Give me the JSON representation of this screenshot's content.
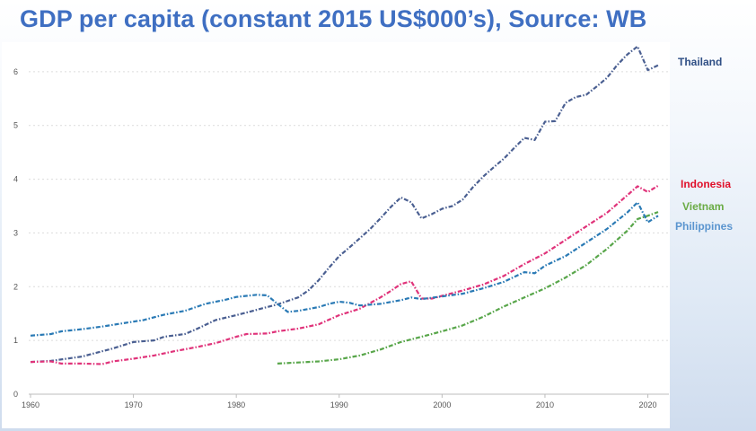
{
  "header": {
    "title": "GDP per capita (constant 2015 US$000’s), Source: WB"
  },
  "chart_data": {
    "type": "line",
    "title": "GDP per capita (constant 2015 US$000’s), Source: WB",
    "xlabel": "",
    "ylabel": "",
    "xlim": [
      1960,
      2021
    ],
    "ylim": [
      0,
      6.5
    ],
    "x_ticks": [
      1960,
      1970,
      1980,
      1990,
      2000,
      2010,
      2020
    ],
    "y_ticks": [
      0,
      1,
      2,
      3,
      4,
      5,
      6
    ],
    "grid": "horizontal dotted",
    "legend": "right, direct labels",
    "series": [
      {
        "name": "Thailand",
        "color": "#4a5f91",
        "points": [
          [
            1960,
            0.6
          ],
          [
            1962,
            0.62
          ],
          [
            1965,
            0.7
          ],
          [
            1968,
            0.85
          ],
          [
            1970,
            0.97
          ],
          [
            1972,
            1.0
          ],
          [
            1973,
            1.07
          ],
          [
            1975,
            1.12
          ],
          [
            1976,
            1.2
          ],
          [
            1978,
            1.38
          ],
          [
            1980,
            1.47
          ],
          [
            1982,
            1.57
          ],
          [
            1984,
            1.67
          ],
          [
            1986,
            1.8
          ],
          [
            1987,
            1.93
          ],
          [
            1988,
            2.12
          ],
          [
            1989,
            2.35
          ],
          [
            1990,
            2.57
          ],
          [
            1991,
            2.73
          ],
          [
            1992,
            2.9
          ],
          [
            1993,
            3.07
          ],
          [
            1994,
            3.27
          ],
          [
            1995,
            3.48
          ],
          [
            1996,
            3.66
          ],
          [
            1997,
            3.57
          ],
          [
            1998,
            3.27
          ],
          [
            1999,
            3.35
          ],
          [
            2000,
            3.45
          ],
          [
            2001,
            3.5
          ],
          [
            2002,
            3.62
          ],
          [
            2003,
            3.85
          ],
          [
            2004,
            4.05
          ],
          [
            2005,
            4.22
          ],
          [
            2006,
            4.38
          ],
          [
            2007,
            4.58
          ],
          [
            2008,
            4.77
          ],
          [
            2009,
            4.73
          ],
          [
            2010,
            5.07
          ],
          [
            2011,
            5.08
          ],
          [
            2012,
            5.42
          ],
          [
            2013,
            5.53
          ],
          [
            2014,
            5.57
          ],
          [
            2015,
            5.72
          ],
          [
            2016,
            5.88
          ],
          [
            2017,
            6.12
          ],
          [
            2018,
            6.32
          ],
          [
            2019,
            6.47
          ],
          [
            2020,
            6.03
          ],
          [
            2021,
            6.12
          ]
        ]
      },
      {
        "name": "Indonesia",
        "color": "#e0337a",
        "points": [
          [
            1960,
            0.6
          ],
          [
            1962,
            0.61
          ],
          [
            1963,
            0.57
          ],
          [
            1965,
            0.57
          ],
          [
            1967,
            0.56
          ],
          [
            1968,
            0.61
          ],
          [
            1970,
            0.66
          ],
          [
            1972,
            0.72
          ],
          [
            1974,
            0.8
          ],
          [
            1976,
            0.87
          ],
          [
            1978,
            0.95
          ],
          [
            1980,
            1.07
          ],
          [
            1981,
            1.12
          ],
          [
            1983,
            1.13
          ],
          [
            1984,
            1.17
          ],
          [
            1986,
            1.22
          ],
          [
            1988,
            1.3
          ],
          [
            1990,
            1.47
          ],
          [
            1992,
            1.59
          ],
          [
            1994,
            1.8
          ],
          [
            1995,
            1.92
          ],
          [
            1996,
            2.05
          ],
          [
            1997,
            2.1
          ],
          [
            1998,
            1.78
          ],
          [
            1999,
            1.78
          ],
          [
            2000,
            1.83
          ],
          [
            2002,
            1.93
          ],
          [
            2004,
            2.04
          ],
          [
            2006,
            2.2
          ],
          [
            2008,
            2.42
          ],
          [
            2010,
            2.62
          ],
          [
            2012,
            2.87
          ],
          [
            2014,
            3.12
          ],
          [
            2016,
            3.37
          ],
          [
            2018,
            3.7
          ],
          [
            2019,
            3.87
          ],
          [
            2020,
            3.76
          ],
          [
            2021,
            3.88
          ]
        ]
      },
      {
        "name": "Vietnam",
        "color": "#58a64a",
        "points": [
          [
            1984,
            0.57
          ],
          [
            1986,
            0.59
          ],
          [
            1988,
            0.61
          ],
          [
            1990,
            0.65
          ],
          [
            1992,
            0.72
          ],
          [
            1994,
            0.83
          ],
          [
            1996,
            0.97
          ],
          [
            1998,
            1.07
          ],
          [
            2000,
            1.17
          ],
          [
            2002,
            1.28
          ],
          [
            2004,
            1.44
          ],
          [
            2006,
            1.63
          ],
          [
            2008,
            1.8
          ],
          [
            2010,
            1.97
          ],
          [
            2012,
            2.17
          ],
          [
            2014,
            2.4
          ],
          [
            2016,
            2.7
          ],
          [
            2018,
            3.04
          ],
          [
            2019,
            3.26
          ],
          [
            2020,
            3.32
          ],
          [
            2021,
            3.39
          ]
        ]
      },
      {
        "name": "Philippines",
        "color": "#2a7ab5",
        "points": [
          [
            1960,
            1.09
          ],
          [
            1962,
            1.12
          ],
          [
            1963,
            1.17
          ],
          [
            1965,
            1.21
          ],
          [
            1967,
            1.26
          ],
          [
            1969,
            1.32
          ],
          [
            1971,
            1.38
          ],
          [
            1973,
            1.48
          ],
          [
            1975,
            1.55
          ],
          [
            1977,
            1.68
          ],
          [
            1979,
            1.76
          ],
          [
            1980,
            1.81
          ],
          [
            1982,
            1.85
          ],
          [
            1983,
            1.84
          ],
          [
            1984,
            1.68
          ],
          [
            1985,
            1.53
          ],
          [
            1986,
            1.55
          ],
          [
            1988,
            1.62
          ],
          [
            1989,
            1.68
          ],
          [
            1990,
            1.72
          ],
          [
            1991,
            1.7
          ],
          [
            1992,
            1.65
          ],
          [
            1994,
            1.68
          ],
          [
            1996,
            1.75
          ],
          [
            1997,
            1.8
          ],
          [
            1998,
            1.77
          ],
          [
            2000,
            1.82
          ],
          [
            2002,
            1.87
          ],
          [
            2004,
            1.97
          ],
          [
            2006,
            2.09
          ],
          [
            2008,
            2.27
          ],
          [
            2009,
            2.25
          ],
          [
            2010,
            2.39
          ],
          [
            2012,
            2.57
          ],
          [
            2014,
            2.82
          ],
          [
            2016,
            3.07
          ],
          [
            2018,
            3.38
          ],
          [
            2019,
            3.57
          ],
          [
            2020,
            3.2
          ],
          [
            2021,
            3.32
          ]
        ]
      }
    ]
  }
}
